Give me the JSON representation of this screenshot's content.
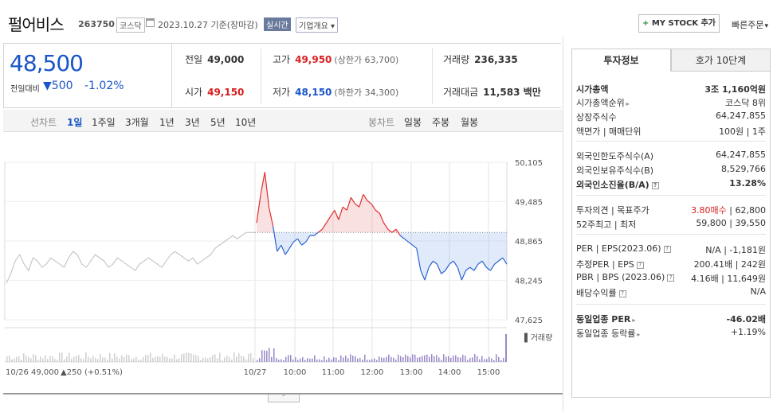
{
  "header": {
    "name": "펄어비스",
    "code": "263750",
    "market": "코스닥",
    "date": "2023.10.27 기준(장마감)",
    "realtime": "실시간",
    "corp_info": "기업개요 ▾",
    "mystock_plus": "+",
    "mystock": "MY STOCK 추가",
    "quick_order": "빠른주문"
  },
  "price": {
    "current": "48,500",
    "change_label": "전일대비",
    "change": "500",
    "percent": "-1.02%"
  },
  "stats": {
    "prev_label": "전일",
    "prev": "49,000",
    "high_label": "고가",
    "high": "49,950",
    "upper_limit": "(상한가 63,700)",
    "volume_label": "거래량",
    "volume": "236,335",
    "open_label": "시가",
    "open": "49,150",
    "low_label": "저가",
    "low": "48,150",
    "lower_limit": "(하한가 34,300)",
    "amount_label": "거래대금",
    "amount": "11,583 백만"
  },
  "period_bar": {
    "line_chart": "선차트",
    "periods": [
      "1일",
      "1주일",
      "3개월",
      "1년",
      "3년",
      "5년",
      "10년"
    ],
    "selected": "1일",
    "candle_chart": "봉차트",
    "candles": [
      "일봉",
      "주봉",
      "월봉"
    ]
  },
  "chart_data": {
    "type": "line",
    "y_ticks": [
      "50,105",
      "49,485",
      "48,865",
      "48,245",
      "47,625"
    ],
    "ylim": [
      47625,
      50105
    ],
    "prev_close": 49000,
    "x_ticks": [
      "10/27",
      "10:00",
      "11:00",
      "12:00",
      "13:00",
      "14:00",
      "15:00"
    ],
    "volume_label": "거래량",
    "prev_day_label": "10/26",
    "prev_day_price": "49,000",
    "prev_day_change": "▲250 (+0.51%)",
    "prev_day_series": [
      48200,
      48350,
      48550,
      48650,
      48500,
      48400,
      48600,
      48550,
      48450,
      48500,
      48600,
      48550,
      48500,
      48450,
      48600,
      48700,
      48650,
      48500,
      48450,
      48550,
      48650,
      48600,
      48550,
      48450,
      48500,
      48600,
      48550,
      48500,
      48450,
      48400,
      48500,
      48550,
      48600,
      48550,
      48500,
      48450,
      48550,
      48650,
      48700,
      48650,
      48600,
      48550,
      48600,
      48500,
      48550,
      48600,
      48650,
      48750,
      48800,
      48850,
      48900,
      48950,
      48900,
      48950,
      49000,
      49000,
      49000
    ],
    "today_series": [
      49150,
      49600,
      49950,
      49400,
      49100,
      48700,
      48800,
      48650,
      48750,
      48850,
      48900,
      48800,
      48850,
      48950,
      48950,
      49000,
      49050,
      49150,
      49250,
      49350,
      49200,
      49400,
      49350,
      49550,
      49450,
      49400,
      49600,
      49500,
      49450,
      49350,
      49300,
      49150,
      49050,
      49000,
      49050,
      48950,
      48900,
      48850,
      48800,
      48750,
      48400,
      48250,
      48450,
      48550,
      48500,
      48350,
      48400,
      48500,
      48550,
      48450,
      48250,
      48400,
      48450,
      48400,
      48500,
      48550,
      48450,
      48400,
      48500,
      48550,
      48600,
      48500
    ]
  },
  "right_panel": {
    "tab1": "투자정보",
    "tab2": "호가 10단계",
    "rows": {
      "mcap_k": "시가총액",
      "mcap_v": "3조 1,160억원",
      "mcap_rank_k": "시가총액순위",
      "mcap_rank_v": "코스닥 8위",
      "shares_k": "상장주식수",
      "shares_v": "64,247,855",
      "face_k": "액면가 | 매매단위",
      "face_v": "100원 | 1주",
      "foreign_limit_k": "외국인한도주식수(A)",
      "foreign_limit_v": "64,247,855",
      "foreign_hold_k": "외국인보유주식수(B)",
      "foreign_hold_v": "8,529,766",
      "foreign_ratio_k": "외국인소진율(B/A)",
      "foreign_ratio_v": "13.28%",
      "opinion_k": "투자의견 | 목표주가",
      "opinion_v1": "3.80매수",
      "opinion_v2": " | 62,800",
      "wk52_k": "52주최고 | 최저",
      "wk52_v": "59,800 | 39,550",
      "per_k": "PER | EPS(2023.06)",
      "per_v": "N/A | -1,181원",
      "est_k": "추정PER | EPS",
      "est_v": "200.41배 | 242원",
      "pbr_k": "PBR | BPS (2023.06)",
      "pbr_v": "4.16배 | 11,649원",
      "div_k": "배당수익률",
      "div_v": "N/A",
      "ind_per_k": "동일업종 PER",
      "ind_per_v": "-46.02배",
      "ind_rate_k": "동일업종 등락률",
      "ind_rate_v": "+1.19%"
    }
  }
}
